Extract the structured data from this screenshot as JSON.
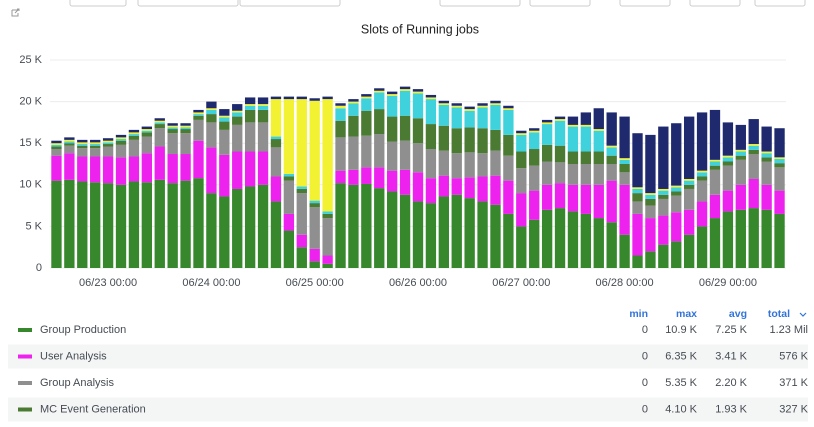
{
  "chart_data": {
    "type": "stacked_bar",
    "title": "Slots of Running jobs",
    "ylim": [
      0,
      25000
    ],
    "yticks": [
      0,
      {
        "value": 5000,
        "label": "5 K"
      },
      {
        "value": 10000,
        "label": "10 K"
      },
      {
        "value": 15000,
        "label": "15 K"
      },
      {
        "value": 20000,
        "label": "20 K"
      },
      {
        "value": 25000,
        "label": "25 K"
      }
    ],
    "grid": true,
    "categories": [
      null,
      null,
      null,
      null,
      "06/23 00:00",
      null,
      null,
      null,
      null,
      null,
      null,
      null,
      "06/24 00:00",
      null,
      null,
      null,
      null,
      null,
      null,
      null,
      "06/25 00:00",
      null,
      null,
      null,
      null,
      null,
      null,
      null,
      "06/26 00:00",
      null,
      null,
      null,
      null,
      null,
      null,
      null,
      "06/27 00:00",
      null,
      null,
      null,
      null,
      null,
      null,
      null,
      "06/28 00:00",
      null,
      null,
      null,
      null,
      null,
      null,
      null,
      "06/29 00:00",
      null,
      null,
      null,
      null
    ],
    "legend_columns": [
      "min",
      "max",
      "avg",
      "total"
    ],
    "series": [
      {
        "name": "Group Production",
        "color": "#37872d",
        "values": [
          10500,
          10600,
          10400,
          10300,
          10200,
          10000,
          10400,
          10300,
          10600,
          10200,
          10500,
          10800,
          9000,
          8600,
          9500,
          9800,
          10000,
          8000,
          4500,
          2500,
          800,
          500,
          10200,
          10000,
          10100,
          9600,
          9200,
          8800,
          8000,
          7800,
          8600,
          8800,
          8400,
          8000,
          7600,
          6500,
          5000,
          5800,
          7000,
          7200,
          6800,
          6500,
          6000,
          5500,
          4000,
          1500,
          2000,
          2800,
          3200,
          4000,
          5000,
          6000,
          6800,
          7000,
          7200,
          7000,
          6500
        ],
        "stats": [
          0,
          10900,
          7250,
          1230000
        ],
        "stats_labels": [
          "0",
          "10.9 K",
          "7.25 K",
          "1.23 Mil"
        ]
      },
      {
        "name": "User Analysis",
        "color": "#ee22ee",
        "values": [
          3000,
          3200,
          3000,
          3100,
          3200,
          3300,
          3000,
          3500,
          4000,
          3500,
          3200,
          4500,
          5500,
          5000,
          4500,
          4200,
          4000,
          3000,
          2000,
          1500,
          1500,
          1000,
          1500,
          1800,
          2000,
          2500,
          2500,
          3000,
          3500,
          3000,
          2500,
          2000,
          2500,
          3000,
          3500,
          4000,
          4000,
          3500,
          3000,
          3000,
          3200,
          3500,
          4000,
          5000,
          6000,
          5000,
          4000,
          3500,
          3500,
          3000,
          3000,
          2800,
          2500,
          3000,
          3500,
          3000,
          2800
        ],
        "stats": [
          0,
          6350,
          3410,
          576000
        ],
        "stats_labels": [
          "0",
          "6.35 K",
          "3.41 K",
          "576 K"
        ]
      },
      {
        "name": "Group Analysis",
        "color": "#8f8f8f",
        "values": [
          800,
          900,
          1000,
          1000,
          1200,
          1500,
          2000,
          2000,
          2200,
          2500,
          2500,
          2500,
          3000,
          3000,
          3200,
          3500,
          3500,
          3500,
          4000,
          5000,
          5000,
          4500,
          4000,
          4000,
          3800,
          4000,
          3500,
          3500,
          3500,
          3500,
          3000,
          3000,
          3000,
          2800,
          3000,
          3000,
          3000,
          3000,
          2800,
          2500,
          2500,
          2500,
          2500,
          2000,
          1500,
          1500,
          1500,
          2000,
          2000,
          2500,
          2500,
          3000,
          3000,
          3000,
          3000,
          2800,
          2800
        ],
        "stats": [
          0,
          5350,
          2200,
          371000
        ],
        "stats_labels": [
          "0",
          "5.35 K",
          "2.20 K",
          "371 K"
        ]
      },
      {
        "name": "MC Event Generation",
        "color": "#4b7a32",
        "values": [
          300,
          300,
          300,
          300,
          300,
          500,
          500,
          500,
          500,
          500,
          500,
          500,
          1000,
          1000,
          1000,
          1500,
          1500,
          1000,
          500,
          500,
          500,
          500,
          2000,
          2500,
          3000,
          3000,
          3000,
          3000,
          3000,
          3000,
          3000,
          3000,
          3000,
          3000,
          2500,
          2500,
          2000,
          2000,
          2000,
          2000,
          1500,
          1500,
          1500,
          1000,
          1000,
          1000,
          800,
          500,
          500,
          500,
          500,
          500,
          500,
          500,
          500,
          500,
          500
        ],
        "stats": [
          0,
          4100,
          1930,
          327000
        ],
        "stats_labels": [
          "0",
          "4.10 K",
          "1.93 K",
          "327 K"
        ]
      },
      {
        "color": "#3fd2dd",
        "values": [
          200,
          200,
          200,
          200,
          200,
          200,
          200,
          200,
          200,
          200,
          200,
          200,
          500,
          500,
          500,
          500,
          500,
          300,
          300,
          300,
          300,
          300,
          1500,
          1500,
          1500,
          2000,
          2500,
          3000,
          3000,
          3000,
          2500,
          2500,
          2000,
          2500,
          3000,
          3000,
          2000,
          2000,
          2500,
          3000,
          3000,
          3000,
          2500,
          1000,
          500,
          500,
          500,
          500,
          500,
          500,
          500,
          500,
          500,
          500,
          500,
          500,
          500
        ]
      },
      {
        "color": "#f2f233",
        "values": [
          200,
          200,
          200,
          200,
          200,
          200,
          200,
          200,
          200,
          200,
          200,
          200,
          200,
          200,
          200,
          200,
          200,
          4500,
          9000,
          10500,
          12000,
          13500,
          300,
          200,
          200,
          200,
          200,
          200,
          200,
          200,
          200,
          200,
          200,
          200,
          200,
          200,
          200,
          200,
          200,
          200,
          200,
          200,
          200,
          200,
          200,
          200,
          200,
          200,
          200,
          200,
          200,
          200,
          200,
          200,
          200,
          200,
          200
        ]
      },
      {
        "color": "#1f2a6e",
        "values": [
          300,
          300,
          300,
          300,
          300,
          300,
          300,
          300,
          300,
          300,
          300,
          300,
          800,
          800,
          800,
          800,
          800,
          300,
          300,
          300,
          300,
          300,
          300,
          300,
          300,
          300,
          300,
          300,
          300,
          300,
          300,
          300,
          300,
          300,
          300,
          300,
          300,
          300,
          300,
          300,
          1000,
          1500,
          2500,
          4000,
          5000,
          6500,
          7000,
          7500,
          7500,
          7500,
          7000,
          6000,
          4000,
          3000,
          3000,
          3000,
          3500
        ]
      }
    ]
  }
}
